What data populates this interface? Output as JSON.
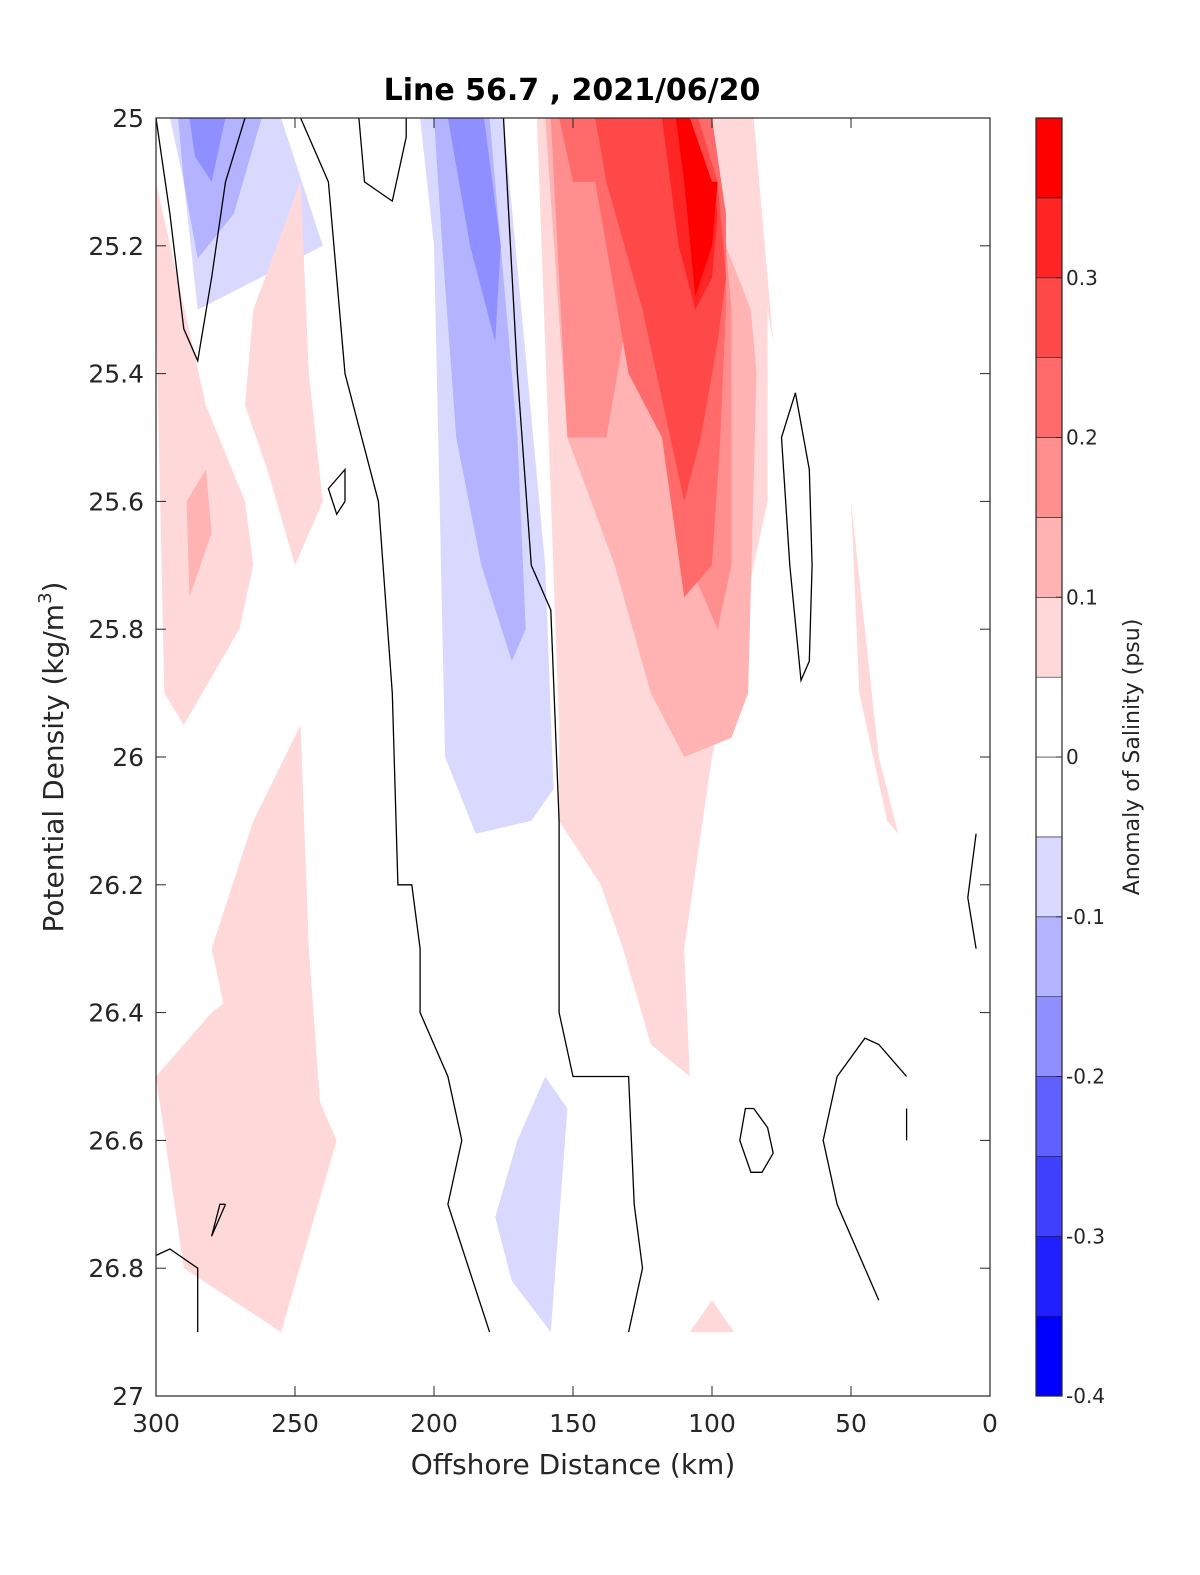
{
  "chart_data": {
    "type": "heatmap",
    "subtype": "filled-contour",
    "title": "Line 56.7 , 2021/06/20",
    "xlabel": "Offshore Distance (km)",
    "ylabel_main": "Potential Density (kg/m",
    "ylabel_sup": "3",
    "ylabel_close": ")",
    "x_reversed": true,
    "y_reversed": true,
    "xlim": [
      0,
      300
    ],
    "ylim": [
      25,
      27
    ],
    "xticks": [
      300,
      250,
      200,
      150,
      100,
      50,
      0
    ],
    "yticks": [
      25,
      25.2,
      25.4,
      25.6,
      25.8,
      26,
      26.2,
      26.4,
      26.6,
      26.8,
      27
    ],
    "colorbar": {
      "label": "Anomaly of Salinity (psu)",
      "range": [
        -0.4,
        0.4
      ],
      "ticks": [
        -0.4,
        -0.3,
        -0.2,
        -0.1,
        0,
        0.1,
        0.2,
        0.3
      ],
      "tick_labels": [
        "-0.4",
        "-0.3",
        "-0.2",
        "-0.1",
        "0",
        "0.1",
        "0.2",
        "0.3"
      ],
      "levels": [
        {
          "from": -0.4,
          "to": -0.35,
          "color": "#0000ff"
        },
        {
          "from": -0.35,
          "to": -0.3,
          "color": "#2020ff"
        },
        {
          "from": -0.3,
          "to": -0.25,
          "color": "#4040ff"
        },
        {
          "from": -0.25,
          "to": -0.2,
          "color": "#6060ff"
        },
        {
          "from": -0.2,
          "to": -0.15,
          "color": "#8f8fff"
        },
        {
          "from": -0.15,
          "to": -0.1,
          "color": "#b3b3ff"
        },
        {
          "from": -0.1,
          "to": -0.05,
          "color": "#d9d9ff"
        },
        {
          "from": -0.05,
          "to": 0,
          "color": "#ffffff"
        },
        {
          "from": 0,
          "to": 0.05,
          "color": "#ffffff"
        },
        {
          "from": 0.05,
          "to": 0.1,
          "color": "#ffd9d9"
        },
        {
          "from": 0.1,
          "to": 0.15,
          "color": "#ffb3b3"
        },
        {
          "from": 0.15,
          "to": 0.2,
          "color": "#ff8f8f"
        },
        {
          "from": 0.2,
          "to": 0.25,
          "color": "#ff6a6a"
        },
        {
          "from": 0.25,
          "to": 0.3,
          "color": "#ff4848"
        },
        {
          "from": 0.3,
          "to": 0.35,
          "color": "#ff2525"
        },
        {
          "from": 0.35,
          "to": 0.4,
          "color": "#ff0000"
        }
      ]
    },
    "filled_regions": [
      {
        "level": -0.1,
        "color": "#d9d9ff",
        "points": [
          [
            295,
            25
          ],
          [
            255,
            25
          ],
          [
            240,
            25.2
          ],
          [
            285,
            25.3
          ],
          [
            290,
            25.1
          ]
        ]
      },
      {
        "level": -0.15,
        "color": "#b3b3ff",
        "points": [
          [
            292,
            25
          ],
          [
            262,
            25
          ],
          [
            272,
            25.15
          ],
          [
            285,
            25.22
          ],
          [
            290,
            25.1
          ]
        ]
      },
      {
        "level": -0.2,
        "color": "#8f8fff",
        "points": [
          [
            288,
            25
          ],
          [
            275,
            25
          ],
          [
            280,
            25.1
          ],
          [
            286,
            25.06
          ]
        ]
      },
      {
        "level": -0.1,
        "color": "#d9d9ff",
        "points": [
          [
            205,
            25
          ],
          [
            175,
            25
          ],
          [
            160,
            25.7
          ],
          [
            157,
            26.05
          ],
          [
            165,
            26.1
          ],
          [
            185,
            26.12
          ],
          [
            196,
            26
          ],
          [
            198,
            25.6
          ],
          [
            200,
            25.2
          ]
        ]
      },
      {
        "level": -0.15,
        "color": "#b3b3ff",
        "points": [
          [
            200,
            25
          ],
          [
            180,
            25
          ],
          [
            170,
            25.5
          ],
          [
            167,
            25.8
          ],
          [
            172,
            25.85
          ],
          [
            183,
            25.7
          ],
          [
            192,
            25.5
          ],
          [
            197,
            25.2
          ]
        ]
      },
      {
        "level": -0.2,
        "color": "#8f8fff",
        "points": [
          [
            195,
            25
          ],
          [
            182,
            25
          ],
          [
            176,
            25.2
          ],
          [
            178,
            25.35
          ],
          [
            187,
            25.2
          ]
        ]
      },
      {
        "level": -0.1,
        "color": "#d9d9ff",
        "points": [
          [
            170,
            26.6
          ],
          [
            160,
            26.5
          ],
          [
            152,
            26.55
          ],
          [
            158,
            26.9
          ],
          [
            172,
            26.82
          ],
          [
            178,
            26.72
          ]
        ]
      },
      {
        "level": 0.1,
        "color": "#ffd9d9",
        "points": [
          [
            163,
            25
          ],
          [
            155,
            25.95
          ],
          [
            155,
            26.1
          ],
          [
            140,
            26.2
          ],
          [
            132,
            26.3
          ],
          [
            122,
            26.45
          ],
          [
            108,
            26.5
          ],
          [
            110,
            26.3
          ],
          [
            100,
            26
          ],
          [
            80,
            25.6
          ],
          [
            80,
            25.3
          ],
          [
            78,
            25.35
          ],
          [
            85,
            25
          ],
          [
            163,
            25
          ]
        ]
      },
      {
        "level": 0.15,
        "color": "#ffb3b3",
        "points": [
          [
            160,
            25
          ],
          [
            152,
            25.5
          ],
          [
            135,
            25.7
          ],
          [
            122,
            25.9
          ],
          [
            110,
            26
          ],
          [
            93,
            25.97
          ],
          [
            87,
            25.9
          ],
          [
            84,
            25.4
          ],
          [
            86,
            25.3
          ],
          [
            95,
            25.2
          ],
          [
            100,
            25
          ],
          [
            160,
            25
          ]
        ]
      },
      {
        "level": 0.2,
        "color": "#ff8f8f",
        "points": [
          [
            158,
            25
          ],
          [
            152,
            25.5
          ],
          [
            138,
            25.5
          ],
          [
            130,
            25.3
          ],
          [
            115,
            25.5
          ],
          [
            108,
            25.7
          ],
          [
            98,
            25.8
          ],
          [
            93,
            25.7
          ],
          [
            93,
            25.3
          ],
          [
            95,
            25.2
          ],
          [
            105,
            25
          ],
          [
            158,
            25
          ]
        ]
      },
      {
        "level": 0.25,
        "color": "#ff6a6a",
        "points": [
          [
            155,
            25
          ],
          [
            150,
            25.1
          ],
          [
            142,
            25.1
          ],
          [
            130,
            25.4
          ],
          [
            118,
            25.5
          ],
          [
            110,
            25.75
          ],
          [
            100,
            25.7
          ],
          [
            97,
            25.5
          ],
          [
            95,
            25.3
          ],
          [
            95,
            25.15
          ],
          [
            100,
            25
          ],
          [
            155,
            25
          ]
        ]
      },
      {
        "level": 0.3,
        "color": "#ff4848",
        "points": [
          [
            142,
            25
          ],
          [
            138,
            25.1
          ],
          [
            125,
            25.3
          ],
          [
            110,
            25.6
          ],
          [
            104,
            25.5
          ],
          [
            98,
            25.35
          ],
          [
            95,
            25.25
          ],
          [
            98,
            25.1
          ],
          [
            105,
            25
          ],
          [
            142,
            25
          ]
        ]
      },
      {
        "level": 0.35,
        "color": "#ff2525",
        "points": [
          [
            118,
            25
          ],
          [
            112,
            25.2
          ],
          [
            106,
            25.3
          ],
          [
            100,
            25.25
          ],
          [
            98,
            25.15
          ],
          [
            100,
            25.1
          ],
          [
            108,
            25
          ],
          [
            118,
            25
          ]
        ]
      },
      {
        "level": 0.4,
        "color": "#ff0000",
        "points": [
          [
            113,
            25
          ],
          [
            110,
            25.1
          ],
          [
            106,
            25.28
          ],
          [
            100,
            25.2
          ],
          [
            98,
            25.1
          ],
          [
            100,
            25.1
          ],
          [
            108,
            25
          ]
        ]
      },
      {
        "level": 0.1,
        "color": "#ffd9d9",
        "points": [
          [
            300,
            25.1
          ],
          [
            282,
            25.45
          ],
          [
            268,
            25.6
          ],
          [
            265,
            25.7
          ],
          [
            270,
            25.8
          ],
          [
            290,
            25.95
          ],
          [
            297,
            25.9
          ],
          [
            300,
            25.3
          ]
        ]
      },
      {
        "level": 0.1,
        "color": "#ffd9d9",
        "points": [
          [
            265,
            25.3
          ],
          [
            248,
            25.1
          ],
          [
            245,
            25.4
          ],
          [
            240,
            25.6
          ],
          [
            250,
            25.7
          ],
          [
            260,
            25.55
          ],
          [
            268,
            25.45
          ]
        ]
      },
      {
        "level": 0.1,
        "color": "#ffd9d9",
        "points": [
          [
            248,
            25.95
          ],
          [
            245,
            26.3
          ],
          [
            240,
            26.6
          ],
          [
            250,
            26.75
          ],
          [
            270,
            26.5
          ],
          [
            280,
            26.3
          ],
          [
            265,
            26.1
          ]
        ]
      },
      {
        "level": 0.15,
        "color": "#ffb3b3",
        "points": [
          [
            289,
            25.6
          ],
          [
            288,
            25.75
          ],
          [
            280,
            25.65
          ],
          [
            282,
            25.55
          ]
        ]
      },
      {
        "level": 0.1,
        "color": "#ffd9d9",
        "points": [
          [
            300,
            26.5
          ],
          [
            290,
            26.8
          ],
          [
            255,
            26.9
          ],
          [
            235,
            26.6
          ],
          [
            250,
            26.45
          ],
          [
            265,
            26.35
          ],
          [
            280,
            26.4
          ]
        ]
      },
      {
        "level": 0.1,
        "color": "#ffd9d9",
        "points": [
          [
            50,
            25.6
          ],
          [
            45,
            25.8
          ],
          [
            40,
            26.0
          ],
          [
            33,
            26.12
          ],
          [
            37,
            26.1
          ],
          [
            47,
            25.9
          ]
        ]
      },
      {
        "level": 0.1,
        "color": "#ffd9d9",
        "points": [
          [
            108,
            26.9
          ],
          [
            92,
            26.9
          ],
          [
            100,
            26.85
          ]
        ]
      }
    ],
    "zero_contours": [
      {
        "points": [
          [
            300,
            25
          ],
          [
            295,
            25.15
          ],
          [
            290,
            25.33
          ],
          [
            285,
            25.38
          ],
          [
            280,
            25.25
          ],
          [
            275,
            25.1
          ],
          [
            268,
            25
          ]
        ]
      },
      {
        "points": [
          [
            248,
            25
          ],
          [
            238,
            25.1
          ],
          [
            232,
            25.4
          ],
          [
            220,
            25.6
          ],
          [
            215,
            25.9
          ],
          [
            213,
            26.2
          ],
          [
            208,
            26.2
          ],
          [
            205,
            26.3
          ],
          [
            205,
            26.4
          ],
          [
            195,
            26.5
          ],
          [
            190,
            26.6
          ],
          [
            195,
            26.7
          ],
          [
            180,
            26.9
          ]
        ]
      },
      {
        "points": [
          [
            227,
            25
          ],
          [
            225,
            25.1
          ],
          [
            215,
            25.13
          ],
          [
            210,
            25.03
          ],
          [
            210,
            25
          ]
        ]
      },
      {
        "points": [
          [
            175,
            25
          ],
          [
            170,
            25.4
          ],
          [
            165,
            25.7
          ],
          [
            158,
            25.77
          ],
          [
            155,
            26.1
          ],
          [
            155,
            26.4
          ],
          [
            150,
            26.5
          ],
          [
            130,
            26.5
          ],
          [
            128,
            26.7
          ],
          [
            125,
            26.8
          ],
          [
            130,
            26.9
          ]
        ]
      },
      {
        "points": [
          [
            232,
            25.6
          ],
          [
            235,
            25.62
          ],
          [
            238,
            25.58
          ],
          [
            232,
            25.55
          ],
          [
            232,
            25.6
          ]
        ]
      },
      {
        "points": [
          [
            70,
            25.43
          ],
          [
            65,
            25.55
          ],
          [
            64,
            25.7
          ],
          [
            65,
            25.85
          ],
          [
            68,
            25.88
          ],
          [
            72,
            25.7
          ],
          [
            75,
            25.5
          ],
          [
            70,
            25.43
          ]
        ]
      },
      {
        "points": [
          [
            5,
            26.12
          ],
          [
            8,
            26.22
          ],
          [
            5,
            26.3
          ]
        ]
      },
      {
        "points": [
          [
            85,
            26.55
          ],
          [
            80,
            26.58
          ],
          [
            78,
            26.62
          ],
          [
            82,
            26.65
          ],
          [
            86,
            26.65
          ],
          [
            90,
            26.6
          ],
          [
            88,
            26.55
          ],
          [
            85,
            26.55
          ]
        ]
      },
      {
        "points": [
          [
            30,
            26.5
          ],
          [
            40,
            26.45
          ],
          [
            45,
            26.44
          ],
          [
            55,
            26.5
          ],
          [
            60,
            26.6
          ],
          [
            55,
            26.7
          ],
          [
            40,
            26.85
          ]
        ]
      },
      {
        "points": [
          [
            30,
            26.55
          ],
          [
            30,
            26.6
          ]
        ]
      },
      {
        "points": [
          [
            300,
            26.78
          ],
          [
            295,
            26.77
          ],
          [
            285,
            26.8
          ],
          [
            285,
            26.9
          ]
        ]
      },
      {
        "points": [
          [
            275,
            26.7
          ],
          [
            280,
            26.75
          ],
          [
            277,
            26.7
          ],
          [
            275,
            26.7
          ]
        ]
      }
    ]
  }
}
